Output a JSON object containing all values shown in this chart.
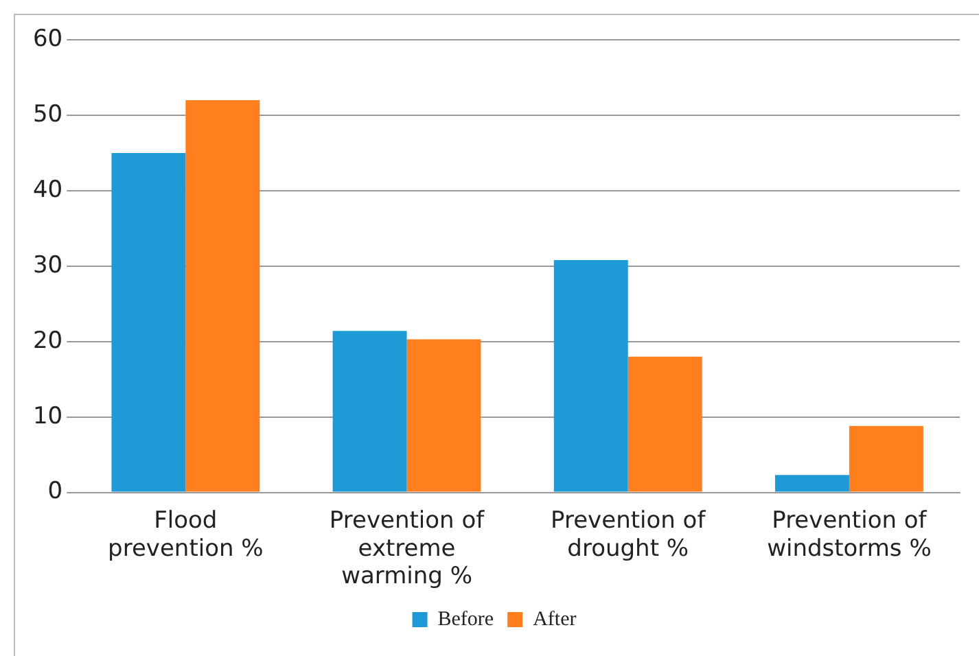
{
  "chart_data": {
    "type": "bar",
    "categories": [
      "Flood prevention %",
      "Prevention of extreme warming %",
      "Prevention of drought %",
      "Prevention of windstorms %"
    ],
    "series": [
      {
        "name": "Before",
        "color": "#1e9bd7",
        "values": [
          45,
          21.4,
          30.8,
          2.3
        ]
      },
      {
        "name": "After",
        "color": "#ff7f1e",
        "values": [
          52,
          20.3,
          18,
          8.8
        ]
      }
    ],
    "ylim": [
      0,
      60
    ],
    "yticks": [
      0,
      10,
      20,
      30,
      40,
      50,
      60
    ],
    "grid": "y",
    "legend": "bottom"
  }
}
